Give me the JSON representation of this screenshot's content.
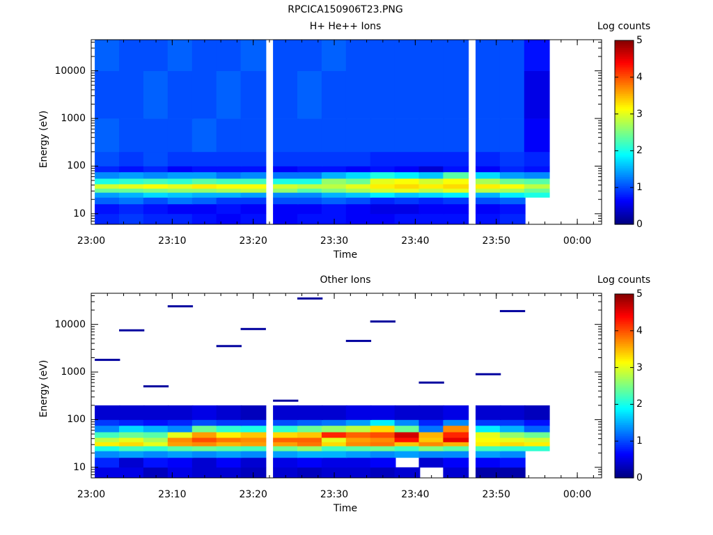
{
  "figure": {
    "title": "RPCICA150906T23.PNG"
  },
  "colorbar": {
    "label": "Log counts",
    "ticks": [
      "0",
      "1",
      "2",
      "3",
      "4",
      "5"
    ],
    "range": [
      0,
      5
    ],
    "palette": "jet"
  },
  "chart_data": [
    {
      "type": "heatmap",
      "title": "H+ He++ Ions",
      "xlabel": "Time",
      "ylabel": "Energy (eV)",
      "x_ticks": [
        "23:00",
        "23:10",
        "23:20",
        "23:30",
        "23:40",
        "23:50",
        "00:00"
      ],
      "y_ticks": [
        "10",
        "100",
        "1000",
        "10000"
      ],
      "yscale": "log",
      "ylim": [
        6,
        45000
      ],
      "xlim": [
        "23:00",
        "00:03"
      ],
      "time_bins": [
        "23:02",
        "23:05",
        "23:08",
        "23:11",
        "23:14",
        "23:17",
        "23:20",
        "23:24",
        "23:27",
        "23:30",
        "23:33",
        "23:36",
        "23:39",
        "23:42",
        "23:45",
        "23:49",
        "23:52",
        "23:55"
      ],
      "energy_bands_eV": [
        "6-10",
        "10-16",
        "16-22",
        "22-28",
        "28-34",
        "34-42",
        "42-55",
        "55-75",
        "75-100",
        "100-200",
        "200-1000",
        "1000-10000",
        "10000-45000"
      ],
      "log_counts": [
        [
          0.8,
          0.9,
          0.8,
          0.8,
          0.7,
          0.6,
          0.7,
          0.6,
          0.7,
          0.7,
          0.6,
          0.6,
          0.7,
          0.7,
          0.7,
          0.7,
          0.8,
          null
        ],
        [
          0.7,
          0.8,
          0.7,
          0.6,
          0.6,
          0.7,
          0.6,
          0.6,
          0.6,
          0.7,
          0.6,
          0.5,
          0.5,
          0.6,
          0.6,
          0.6,
          0.7,
          null
        ],
        [
          1.1,
          1.2,
          1.0,
          1.2,
          1.1,
          0.9,
          0.9,
          1.0,
          1.0,
          1.1,
          1.0,
          0.8,
          0.9,
          0.8,
          0.9,
          1.0,
          1.1,
          null
        ],
        [
          1.4,
          1.5,
          1.7,
          1.6,
          1.5,
          1.5,
          1.4,
          1.3,
          1.3,
          1.5,
          1.6,
          1.8,
          1.6,
          1.7,
          1.8,
          1.5,
          1.8,
          2.0
        ],
        [
          2.4,
          2.4,
          2.5,
          2.6,
          2.6,
          2.7,
          2.8,
          2.6,
          2.3,
          2.5,
          2.7,
          2.9,
          3.0,
          2.8,
          3.0,
          2.8,
          2.7,
          2.4
        ],
        [
          2.9,
          3.0,
          3.1,
          3.0,
          3.2,
          3.1,
          3.1,
          2.9,
          2.8,
          2.8,
          3.0,
          3.2,
          3.3,
          3.2,
          3.3,
          3.2,
          3.1,
          2.8
        ],
        [
          2.0,
          2.1,
          2.2,
          2.1,
          2.3,
          2.2,
          2.2,
          2.0,
          2.0,
          2.6,
          2.4,
          3.0,
          3.1,
          2.9,
          3.1,
          2.7,
          2.4,
          2.3
        ],
        [
          1.3,
          1.4,
          1.3,
          1.4,
          1.4,
          1.2,
          1.3,
          1.2,
          1.2,
          1.5,
          1.7,
          2.0,
          1.8,
          1.6,
          2.3,
          1.7,
          1.4,
          1.3
        ],
        [
          0.8,
          0.7,
          0.8,
          0.6,
          0.7,
          0.7,
          0.7,
          0.6,
          0.7,
          0.7,
          0.6,
          0.7,
          0.6,
          0.4,
          0.7,
          0.6,
          0.8,
          0.7
        ],
        [
          1.0,
          0.9,
          1.0,
          0.9,
          0.9,
          0.9,
          0.9,
          0.9,
          0.9,
          0.9,
          0.9,
          0.8,
          0.8,
          0.8,
          0.8,
          0.8,
          0.9,
          0.8
        ],
        [
          1.1,
          1.0,
          1.0,
          1.0,
          1.1,
          1.0,
          1.0,
          1.0,
          1.0,
          1.0,
          1.0,
          1.0,
          1.0,
          1.0,
          1.0,
          1.0,
          1.0,
          0.6
        ],
        [
          1.0,
          1.0,
          1.1,
          1.0,
          1.0,
          1.1,
          1.0,
          1.0,
          1.1,
          1.0,
          1.0,
          1.0,
          1.0,
          1.0,
          1.0,
          1.0,
          1.0,
          0.5
        ],
        [
          1.1,
          1.0,
          1.0,
          1.1,
          1.0,
          1.0,
          1.1,
          1.0,
          1.0,
          1.1,
          1.0,
          1.0,
          1.0,
          1.0,
          1.0,
          1.0,
          1.0,
          0.7
        ]
      ]
    },
    {
      "type": "heatmap",
      "title": "Other Ions",
      "xlabel": "Time",
      "ylabel": "Energy (eV)",
      "x_ticks": [
        "23:00",
        "23:10",
        "23:20",
        "23:30",
        "23:40",
        "23:50",
        "00:00"
      ],
      "y_ticks": [
        "10",
        "100",
        "1000",
        "10000"
      ],
      "yscale": "log",
      "ylim": [
        6,
        45000
      ],
      "xlim": [
        "23:00",
        "00:03"
      ],
      "time_bins": [
        "23:02",
        "23:05",
        "23:08",
        "23:11",
        "23:14",
        "23:17",
        "23:20",
        "23:24",
        "23:27",
        "23:30",
        "23:33",
        "23:36",
        "23:39",
        "23:42",
        "23:45",
        "23:49",
        "23:52",
        "23:55"
      ],
      "energy_bands_eV": [
        "6-10",
        "10-16",
        "16-22",
        "22-28",
        "28-34",
        "34-42",
        "42-55",
        "55-75",
        "75-100",
        "100-200"
      ],
      "log_counts": [
        [
          0.5,
          0.5,
          0.3,
          0.5,
          0.4,
          0.4,
          0.3,
          0.4,
          0.3,
          0.4,
          0.4,
          0.3,
          0.4,
          null,
          0.4,
          0.2,
          0.2,
          null
        ],
        [
          0.8,
          0.4,
          0.7,
          0.6,
          0.4,
          0.6,
          0.4,
          0.5,
          0.6,
          0.5,
          0.5,
          0.6,
          null,
          0.4,
          0.6,
          0.6,
          0.7,
          null
        ],
        [
          1.3,
          1.4,
          1.3,
          1.4,
          1.3,
          1.4,
          1.3,
          1.4,
          1.5,
          1.5,
          1.4,
          1.3,
          1.4,
          1.3,
          1.3,
          1.4,
          1.3,
          null
        ],
        [
          2.0,
          2.2,
          2.1,
          2.3,
          2.4,
          2.3,
          2.2,
          2.4,
          2.6,
          2.2,
          2.3,
          2.4,
          2.2,
          2.5,
          2.3,
          2.2,
          2.1,
          2.1
        ],
        [
          3.2,
          3.3,
          3.0,
          3.6,
          3.7,
          3.5,
          3.6,
          3.6,
          3.8,
          3.3,
          3.7,
          3.8,
          3.4,
          3.7,
          3.5,
          3.2,
          3.3,
          3.2
        ],
        [
          2.8,
          3.0,
          2.7,
          3.7,
          4.0,
          3.8,
          3.7,
          3.9,
          3.9,
          3.0,
          3.6,
          3.7,
          4.3,
          3.4,
          4.5,
          3.1,
          3.0,
          2.9
        ],
        [
          2.2,
          2.4,
          2.3,
          3.0,
          3.6,
          3.2,
          3.4,
          3.3,
          3.4,
          4.2,
          3.9,
          4.0,
          4.6,
          3.5,
          4.2,
          3.0,
          2.6,
          2.4
        ],
        [
          1.3,
          1.7,
          1.5,
          1.3,
          2.4,
          2.1,
          2.0,
          2.1,
          2.4,
          2.6,
          2.8,
          3.3,
          2.4,
          1.2,
          3.7,
          1.8,
          1.5,
          1.1
        ],
        [
          0.9,
          0.8,
          0.7,
          0.8,
          1.0,
          0.9,
          0.9,
          1.0,
          1.1,
          1.2,
          1.4,
          1.8,
          1.3,
          0.8,
          1.3,
          0.9,
          0.9,
          0.7
        ],
        [
          0.4,
          0.4,
          0.4,
          0.4,
          0.5,
          0.4,
          0.3,
          0.4,
          0.4,
          0.4,
          0.5,
          0.5,
          0.4,
          0.4,
          0.5,
          0.4,
          0.4,
          0.3
        ]
      ],
      "sparse_single_count_lines_eV": [
        7500,
        8000,
        11500,
        19000,
        24000,
        35000,
        600,
        1800,
        3500,
        4500,
        900,
        500,
        250
      ]
    }
  ]
}
